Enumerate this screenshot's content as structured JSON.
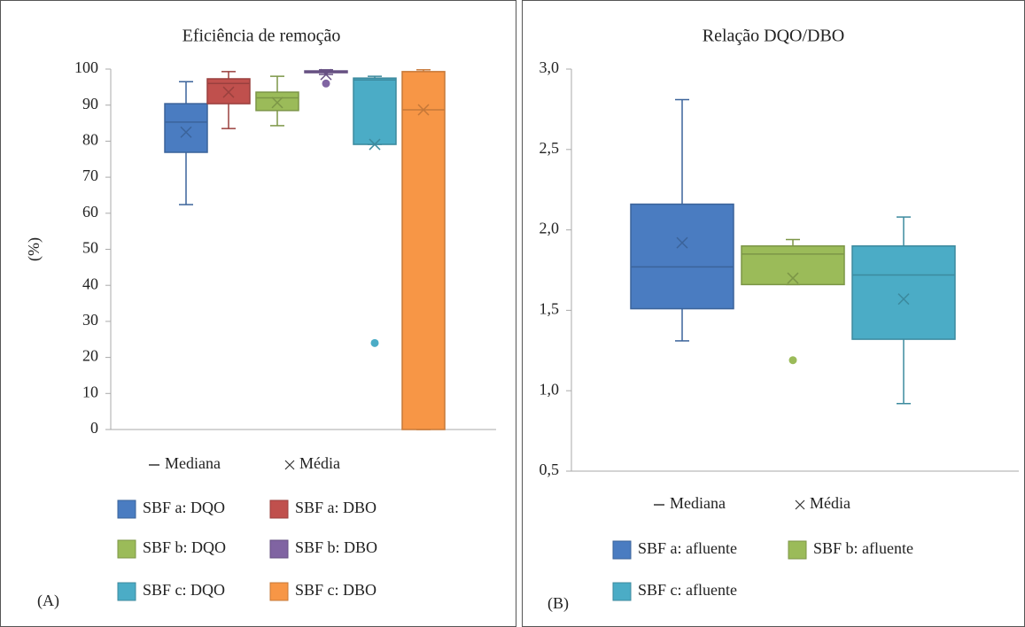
{
  "chart_data": [
    {
      "type": "box",
      "title": "Eficiência de remoção",
      "ylabel": "(%)",
      "panel_label": "(A)",
      "median_label": "Mediana",
      "mean_label": "Média",
      "ylim": [
        0,
        100
      ],
      "yticks": [
        0,
        10,
        20,
        30,
        40,
        50,
        60,
        70,
        80,
        90,
        100
      ],
      "series": [
        {
          "name": "SBF a: DQO",
          "color": "#4a7cc1",
          "min": 62.4,
          "q1": 76.9,
          "median": 85.3,
          "q3": 90.4,
          "max": 96.5,
          "mean": 82.5,
          "outliers": []
        },
        {
          "name": "SBF a: DBO",
          "color": "#c0504d",
          "min": 83.5,
          "q1": 90.4,
          "median": 96,
          "q3": 97.3,
          "max": 99.3,
          "mean": 93.6,
          "outliers": []
        },
        {
          "name": "SBF b: DQO",
          "color": "#9bbb59",
          "min": 84.3,
          "q1": 88.5,
          "median": 92,
          "q3": 93.6,
          "max": 98,
          "mean": 90.7,
          "outliers": []
        },
        {
          "name": "SBF b: DBO",
          "color": "#8064a2",
          "min": 98.5,
          "q1": 99,
          "median": 99.3,
          "q3": 99.5,
          "max": 99.8,
          "mean": 98.5,
          "outliers": [
            96
          ]
        },
        {
          "name": "SBF c: DQO",
          "color": "#4bacc6",
          "min": 79.1,
          "q1": 79.1,
          "median": 97,
          "q3": 97.5,
          "max": 98,
          "mean": 79.1,
          "outliers": [
            24
          ]
        },
        {
          "name": "SBF c: DBO",
          "color": "#f79646",
          "min": 0,
          "q1": 0,
          "median": 88.7,
          "q3": 99.3,
          "max": 99.8,
          "mean": 88.7,
          "outliers": []
        }
      ]
    },
    {
      "type": "box",
      "title": "Relação DQO/DBO",
      "panel_label": "(B)",
      "median_label": "Mediana",
      "mean_label": "Média",
      "ylim": [
        0.5,
        3.0
      ],
      "yticks": [
        {
          "value": 0.5,
          "label": "0,5"
        },
        {
          "value": 1.0,
          "label": "1,0"
        },
        {
          "value": 1.5,
          "label": "1,5"
        },
        {
          "value": 2.0,
          "label": "2,0"
        },
        {
          "value": 2.5,
          "label": "2,5"
        },
        {
          "value": 3.0,
          "label": "3,0"
        }
      ],
      "series": [
        {
          "name": "SBF a: afluente",
          "color": "#4a7cc1",
          "min": 1.31,
          "q1": 1.51,
          "median": 1.77,
          "q3": 2.16,
          "max": 2.81,
          "mean": 1.92,
          "outliers": []
        },
        {
          "name": "SBF b: afluente",
          "color": "#9bbb59",
          "min": 1.66,
          "q1": 1.66,
          "median": 1.85,
          "q3": 1.9,
          "max": 1.94,
          "mean": 1.7,
          "outliers": [
            1.19
          ]
        },
        {
          "name": "SBF c: afluente",
          "color": "#4bacc6",
          "min": 0.92,
          "q1": 1.32,
          "median": 1.72,
          "q3": 1.9,
          "max": 2.08,
          "mean": 1.57,
          "outliers": []
        }
      ]
    }
  ]
}
